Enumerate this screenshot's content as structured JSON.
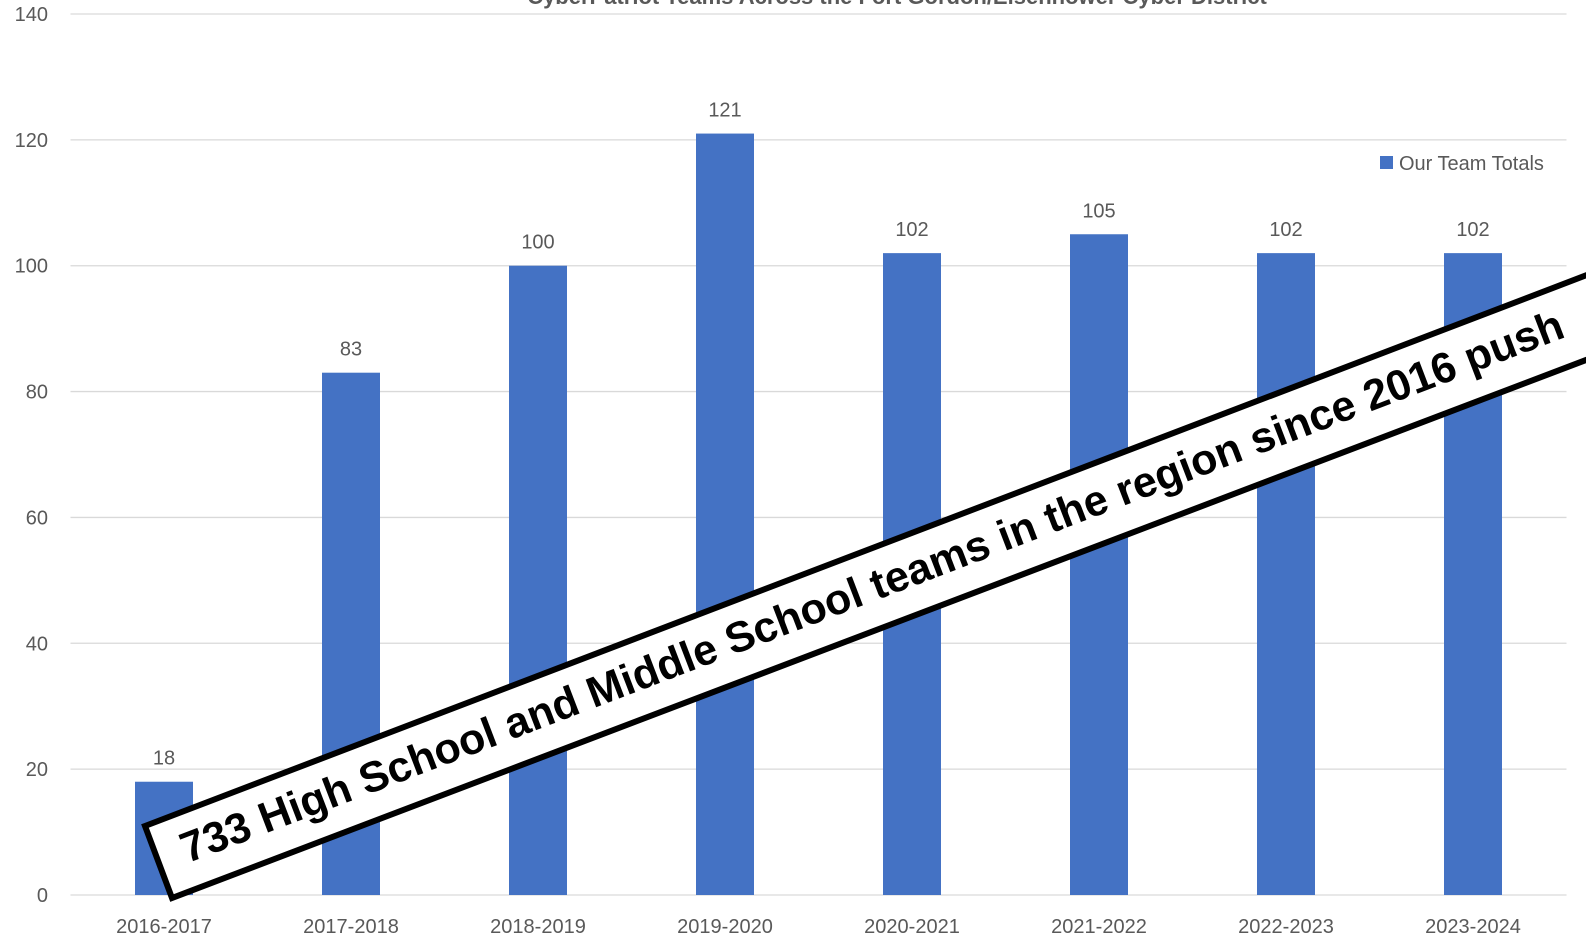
{
  "chart_data": {
    "type": "bar",
    "title": "CyberPatriot Teams Across the Fort Gordon/Eisenhower Cyber District",
    "categories": [
      "2016-2017",
      "2017-2018",
      "2018-2019",
      "2019-2020",
      "2020-2021",
      "2021-2022",
      "2022-2023",
      "2023-2024"
    ],
    "series": [
      {
        "name": "Our Team Totals",
        "color": "#4472c4",
        "values": [
          18,
          83,
          100,
          121,
          102,
          105,
          102,
          102
        ]
      }
    ],
    "ylim": [
      0,
      140
    ],
    "yticks": [
      0,
      20,
      40,
      60,
      80,
      100,
      120,
      140
    ],
    "grid": true,
    "legend": "upper right",
    "annotation": "733 High School and Middle School teams in the region since 2016 push"
  }
}
